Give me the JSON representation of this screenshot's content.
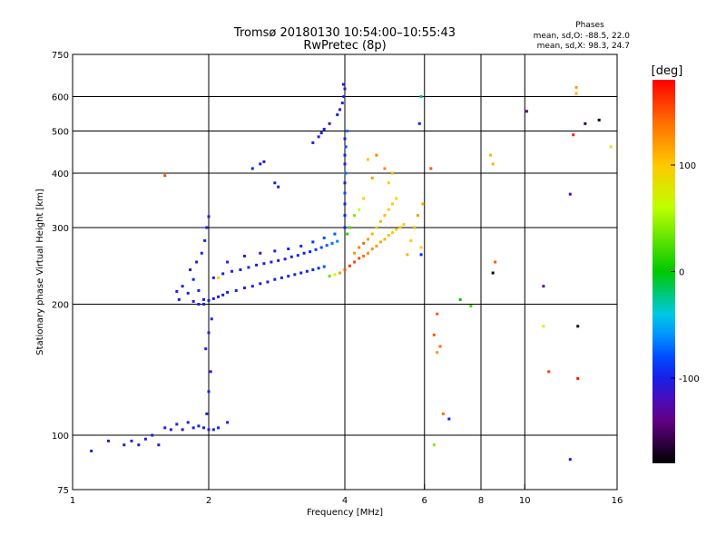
{
  "chart_data": {
    "type": "scatter",
    "title": "Tromsø 20180130 10:54:00–10:55:43",
    "subtitle": "RwPretec (8p)",
    "xlabel": "Frequency [MHz]",
    "ylabel": "Stationary phase Virtual Height [km]",
    "x_scale": "log",
    "y_scale": "log",
    "xlim": [
      1,
      16
    ],
    "ylim": [
      75,
      750
    ],
    "x_ticks": [
      1,
      2,
      4,
      6,
      8,
      10,
      16
    ],
    "y_ticks": [
      75,
      100,
      200,
      300,
      400,
      500,
      600,
      750
    ],
    "x_grid": [
      2,
      4,
      6,
      8,
      10
    ],
    "y_grid": [
      100,
      200,
      300,
      400,
      500,
      600
    ],
    "grid": true,
    "stats": {
      "heading": "Phases",
      "o_line": "mean, sd,O: -88.5, 22.0",
      "x_line": "mean, sd,X:  98.3, 24.7"
    },
    "colorbar": {
      "label": "[deg]",
      "range": [
        -180,
        180
      ],
      "ticks": [
        100,
        0,
        -100
      ],
      "colormap": "rainbow (black → purple → blue → cyan → green → yellow → orange → red)"
    },
    "series": [
      {
        "values_note": "O-mode trace (blue, ~-100 deg)",
        "points": [
          [
            1.1,
            92,
            -100
          ],
          [
            1.2,
            97,
            -110
          ],
          [
            1.3,
            95,
            -100
          ],
          [
            1.35,
            97,
            -105
          ],
          [
            1.4,
            95,
            -100
          ],
          [
            1.45,
            98,
            -110
          ],
          [
            1.5,
            100,
            -100
          ],
          [
            1.55,
            95,
            -110
          ],
          [
            1.6,
            104,
            -100
          ],
          [
            1.65,
            103,
            -105
          ],
          [
            1.7,
            106,
            -100
          ],
          [
            1.75,
            103,
            -110
          ],
          [
            1.8,
            107,
            -100
          ],
          [
            1.85,
            104,
            -100
          ],
          [
            1.9,
            105,
            -90
          ],
          [
            1.95,
            104,
            -100
          ],
          [
            2.0,
            103,
            -110
          ],
          [
            2.05,
            103,
            -100
          ],
          [
            2.1,
            104,
            -90
          ],
          [
            2.2,
            107,
            -100
          ],
          [
            1.98,
            112,
            -100
          ],
          [
            2.0,
            126,
            -100
          ],
          [
            2.02,
            140,
            -105
          ],
          [
            1.97,
            158,
            -100
          ],
          [
            2.0,
            172,
            -110
          ],
          [
            2.03,
            185,
            -100
          ],
          [
            1.95,
            200,
            -100
          ],
          [
            1.9,
            215,
            -95
          ],
          [
            1.85,
            228,
            -100
          ],
          [
            1.82,
            240,
            -110
          ],
          [
            1.88,
            250,
            -100
          ],
          [
            1.93,
            262,
            -100
          ],
          [
            1.96,
            280,
            -95
          ],
          [
            1.98,
            300,
            -100
          ],
          [
            2.0,
            318,
            -110
          ],
          [
            1.8,
            212,
            -100
          ],
          [
            1.75,
            220,
            -100
          ],
          [
            1.7,
            214,
            -105
          ],
          [
            1.72,
            205,
            -100
          ],
          [
            1.85,
            203,
            -110
          ],
          [
            1.9,
            200,
            -100
          ],
          [
            1.95,
            205,
            -100
          ],
          [
            2.0,
            204,
            -95
          ],
          [
            2.05,
            206,
            -100
          ],
          [
            2.1,
            208,
            -105
          ],
          [
            2.15,
            210,
            -100
          ],
          [
            2.2,
            213,
            -100
          ],
          [
            2.3,
            215,
            -95
          ],
          [
            2.4,
            218,
            -100
          ],
          [
            2.5,
            220,
            -100
          ],
          [
            2.6,
            223,
            -100
          ],
          [
            2.7,
            225,
            -105
          ],
          [
            2.8,
            228,
            -100
          ],
          [
            2.9,
            230,
            -100
          ],
          [
            3.0,
            232,
            -95
          ],
          [
            3.1,
            234,
            -100
          ],
          [
            3.2,
            236,
            -100
          ],
          [
            3.3,
            238,
            -100
          ],
          [
            3.4,
            240,
            -95
          ],
          [
            3.5,
            242,
            -90
          ],
          [
            3.6,
            244,
            -80
          ],
          [
            2.05,
            230,
            -100
          ],
          [
            2.15,
            235,
            -105
          ],
          [
            2.25,
            238,
            -100
          ],
          [
            2.35,
            240,
            -100
          ],
          [
            2.45,
            243,
            -95
          ],
          [
            2.55,
            246,
            -100
          ],
          [
            2.65,
            248,
            -100
          ],
          [
            2.75,
            250,
            -105
          ],
          [
            2.85,
            252,
            -100
          ],
          [
            2.95,
            254,
            -100
          ],
          [
            3.05,
            257,
            -100
          ],
          [
            3.15,
            259,
            -95
          ],
          [
            3.25,
            262,
            -100
          ],
          [
            3.35,
            264,
            -90
          ],
          [
            3.45,
            267,
            -85
          ],
          [
            3.55,
            270,
            -80
          ],
          [
            3.65,
            273,
            -75
          ],
          [
            3.75,
            276,
            -70
          ],
          [
            3.85,
            279,
            -65
          ],
          [
            2.2,
            250,
            -100
          ],
          [
            2.4,
            258,
            -100
          ],
          [
            2.6,
            262,
            -110
          ],
          [
            2.8,
            265,
            -100
          ],
          [
            3.0,
            268,
            -100
          ],
          [
            3.2,
            272,
            -90
          ],
          [
            3.4,
            278,
            -85
          ],
          [
            3.6,
            284,
            -80
          ],
          [
            3.8,
            290,
            -75
          ],
          [
            2.6,
            420,
            -100
          ],
          [
            2.65,
            425,
            -110
          ],
          [
            2.5,
            410,
            -100
          ],
          [
            2.8,
            380,
            -100
          ],
          [
            2.85,
            372,
            -100
          ],
          [
            3.4,
            470,
            -100
          ],
          [
            3.5,
            485,
            -105
          ],
          [
            3.55,
            495,
            -100
          ],
          [
            3.6,
            505,
            -100
          ],
          [
            3.7,
            520,
            -110
          ],
          [
            3.85,
            545,
            -100
          ],
          [
            3.9,
            560,
            -110
          ],
          [
            3.95,
            580,
            -100
          ],
          [
            3.98,
            600,
            -100
          ],
          [
            4.0,
            625,
            -110
          ],
          [
            3.97,
            640,
            -100
          ],
          [
            4.0,
            300,
            -100
          ],
          [
            4.0,
            320,
            -90
          ],
          [
            4.0,
            340,
            -100
          ],
          [
            4.0,
            360,
            -80
          ],
          [
            4.0,
            380,
            -100
          ],
          [
            4.02,
            400,
            -70
          ],
          [
            4.0,
            420,
            -100
          ],
          [
            4.0,
            440,
            -90
          ],
          [
            4.02,
            460,
            -80
          ],
          [
            4.0,
            480,
            -100
          ],
          [
            4.05,
            500,
            -70
          ]
        ]
      },
      {
        "values_note": "X-mode trace (orange/red/yellow, ~+100 deg)",
        "points": [
          [
            3.7,
            232,
            30
          ],
          [
            3.8,
            234,
            60
          ],
          [
            3.9,
            236,
            120
          ],
          [
            4.0,
            240,
            150
          ],
          [
            4.1,
            245,
            160
          ],
          [
            4.2,
            250,
            155
          ],
          [
            4.3,
            255,
            150
          ],
          [
            4.4,
            258,
            140
          ],
          [
            4.5,
            262,
            130
          ],
          [
            4.6,
            268,
            125
          ],
          [
            4.7,
            272,
            120
          ],
          [
            4.8,
            278,
            115
          ],
          [
            4.9,
            282,
            110
          ],
          [
            5.0,
            288,
            105
          ],
          [
            5.1,
            292,
            100
          ],
          [
            5.2,
            297,
            95
          ],
          [
            5.3,
            300,
            100
          ],
          [
            5.4,
            305,
            95
          ],
          [
            4.2,
            262,
            120
          ],
          [
            4.3,
            270,
            130
          ],
          [
            4.4,
            276,
            140
          ],
          [
            4.5,
            282,
            120
          ],
          [
            4.6,
            290,
            110
          ],
          [
            4.7,
            300,
            100
          ],
          [
            4.8,
            310,
            110
          ],
          [
            4.9,
            320,
            105
          ],
          [
            5.0,
            330,
            100
          ],
          [
            5.1,
            340,
            100
          ],
          [
            5.2,
            350,
            95
          ],
          [
            5.0,
            380,
            100
          ],
          [
            5.1,
            400,
            110
          ],
          [
            4.9,
            410,
            130
          ],
          [
            4.6,
            390,
            120
          ],
          [
            4.4,
            350,
            90
          ],
          [
            4.3,
            330,
            60
          ],
          [
            4.2,
            320,
            40
          ],
          [
            4.1,
            300,
            20
          ],
          [
            4.05,
            290,
            10
          ],
          [
            5.5,
            260,
            110
          ],
          [
            5.6,
            280,
            100
          ],
          [
            5.7,
            300,
            110
          ],
          [
            5.8,
            320,
            120
          ],
          [
            5.9,
            270,
            100
          ],
          [
            5.95,
            340,
            115
          ],
          [
            6.2,
            410,
            150
          ],
          [
            6.4,
            190,
            150
          ],
          [
            6.3,
            170,
            150
          ],
          [
            6.5,
            160,
            140
          ],
          [
            6.4,
            155,
            120
          ],
          [
            6.6,
            112,
            140
          ],
          [
            8.6,
            250,
            150
          ],
          [
            8.5,
            420,
            110
          ],
          [
            8.4,
            440,
            110
          ],
          [
            13.0,
            610,
            110
          ],
          [
            13.0,
            630,
            120
          ],
          [
            12.8,
            490,
            170
          ],
          [
            15.5,
            460,
            60
          ],
          [
            2.1,
            230,
            100
          ],
          [
            1.6,
            395,
            150
          ],
          [
            4.5,
            430,
            100
          ],
          [
            4.7,
            440,
            130
          ]
        ]
      },
      {
        "values_note": "sparse noise",
        "points": [
          [
            6.3,
            95,
            40
          ],
          [
            6.8,
            109,
            -100
          ],
          [
            7.2,
            205,
            0
          ],
          [
            7.6,
            198,
            20
          ],
          [
            8.5,
            236,
            -180
          ],
          [
            10.1,
            555,
            -140
          ],
          [
            11.0,
            220,
            -130
          ],
          [
            11.0,
            178,
            60
          ],
          [
            11.3,
            140,
            160
          ],
          [
            12.6,
            88,
            -100
          ],
          [
            12.6,
            358,
            -120
          ],
          [
            13.1,
            178,
            -170
          ],
          [
            13.1,
            135,
            170
          ],
          [
            13.6,
            520,
            -160
          ],
          [
            14.6,
            530,
            -180
          ],
          [
            5.9,
            600,
            -20
          ],
          [
            5.85,
            520,
            -100
          ],
          [
            5.9,
            260,
            -90
          ]
        ]
      }
    ]
  }
}
